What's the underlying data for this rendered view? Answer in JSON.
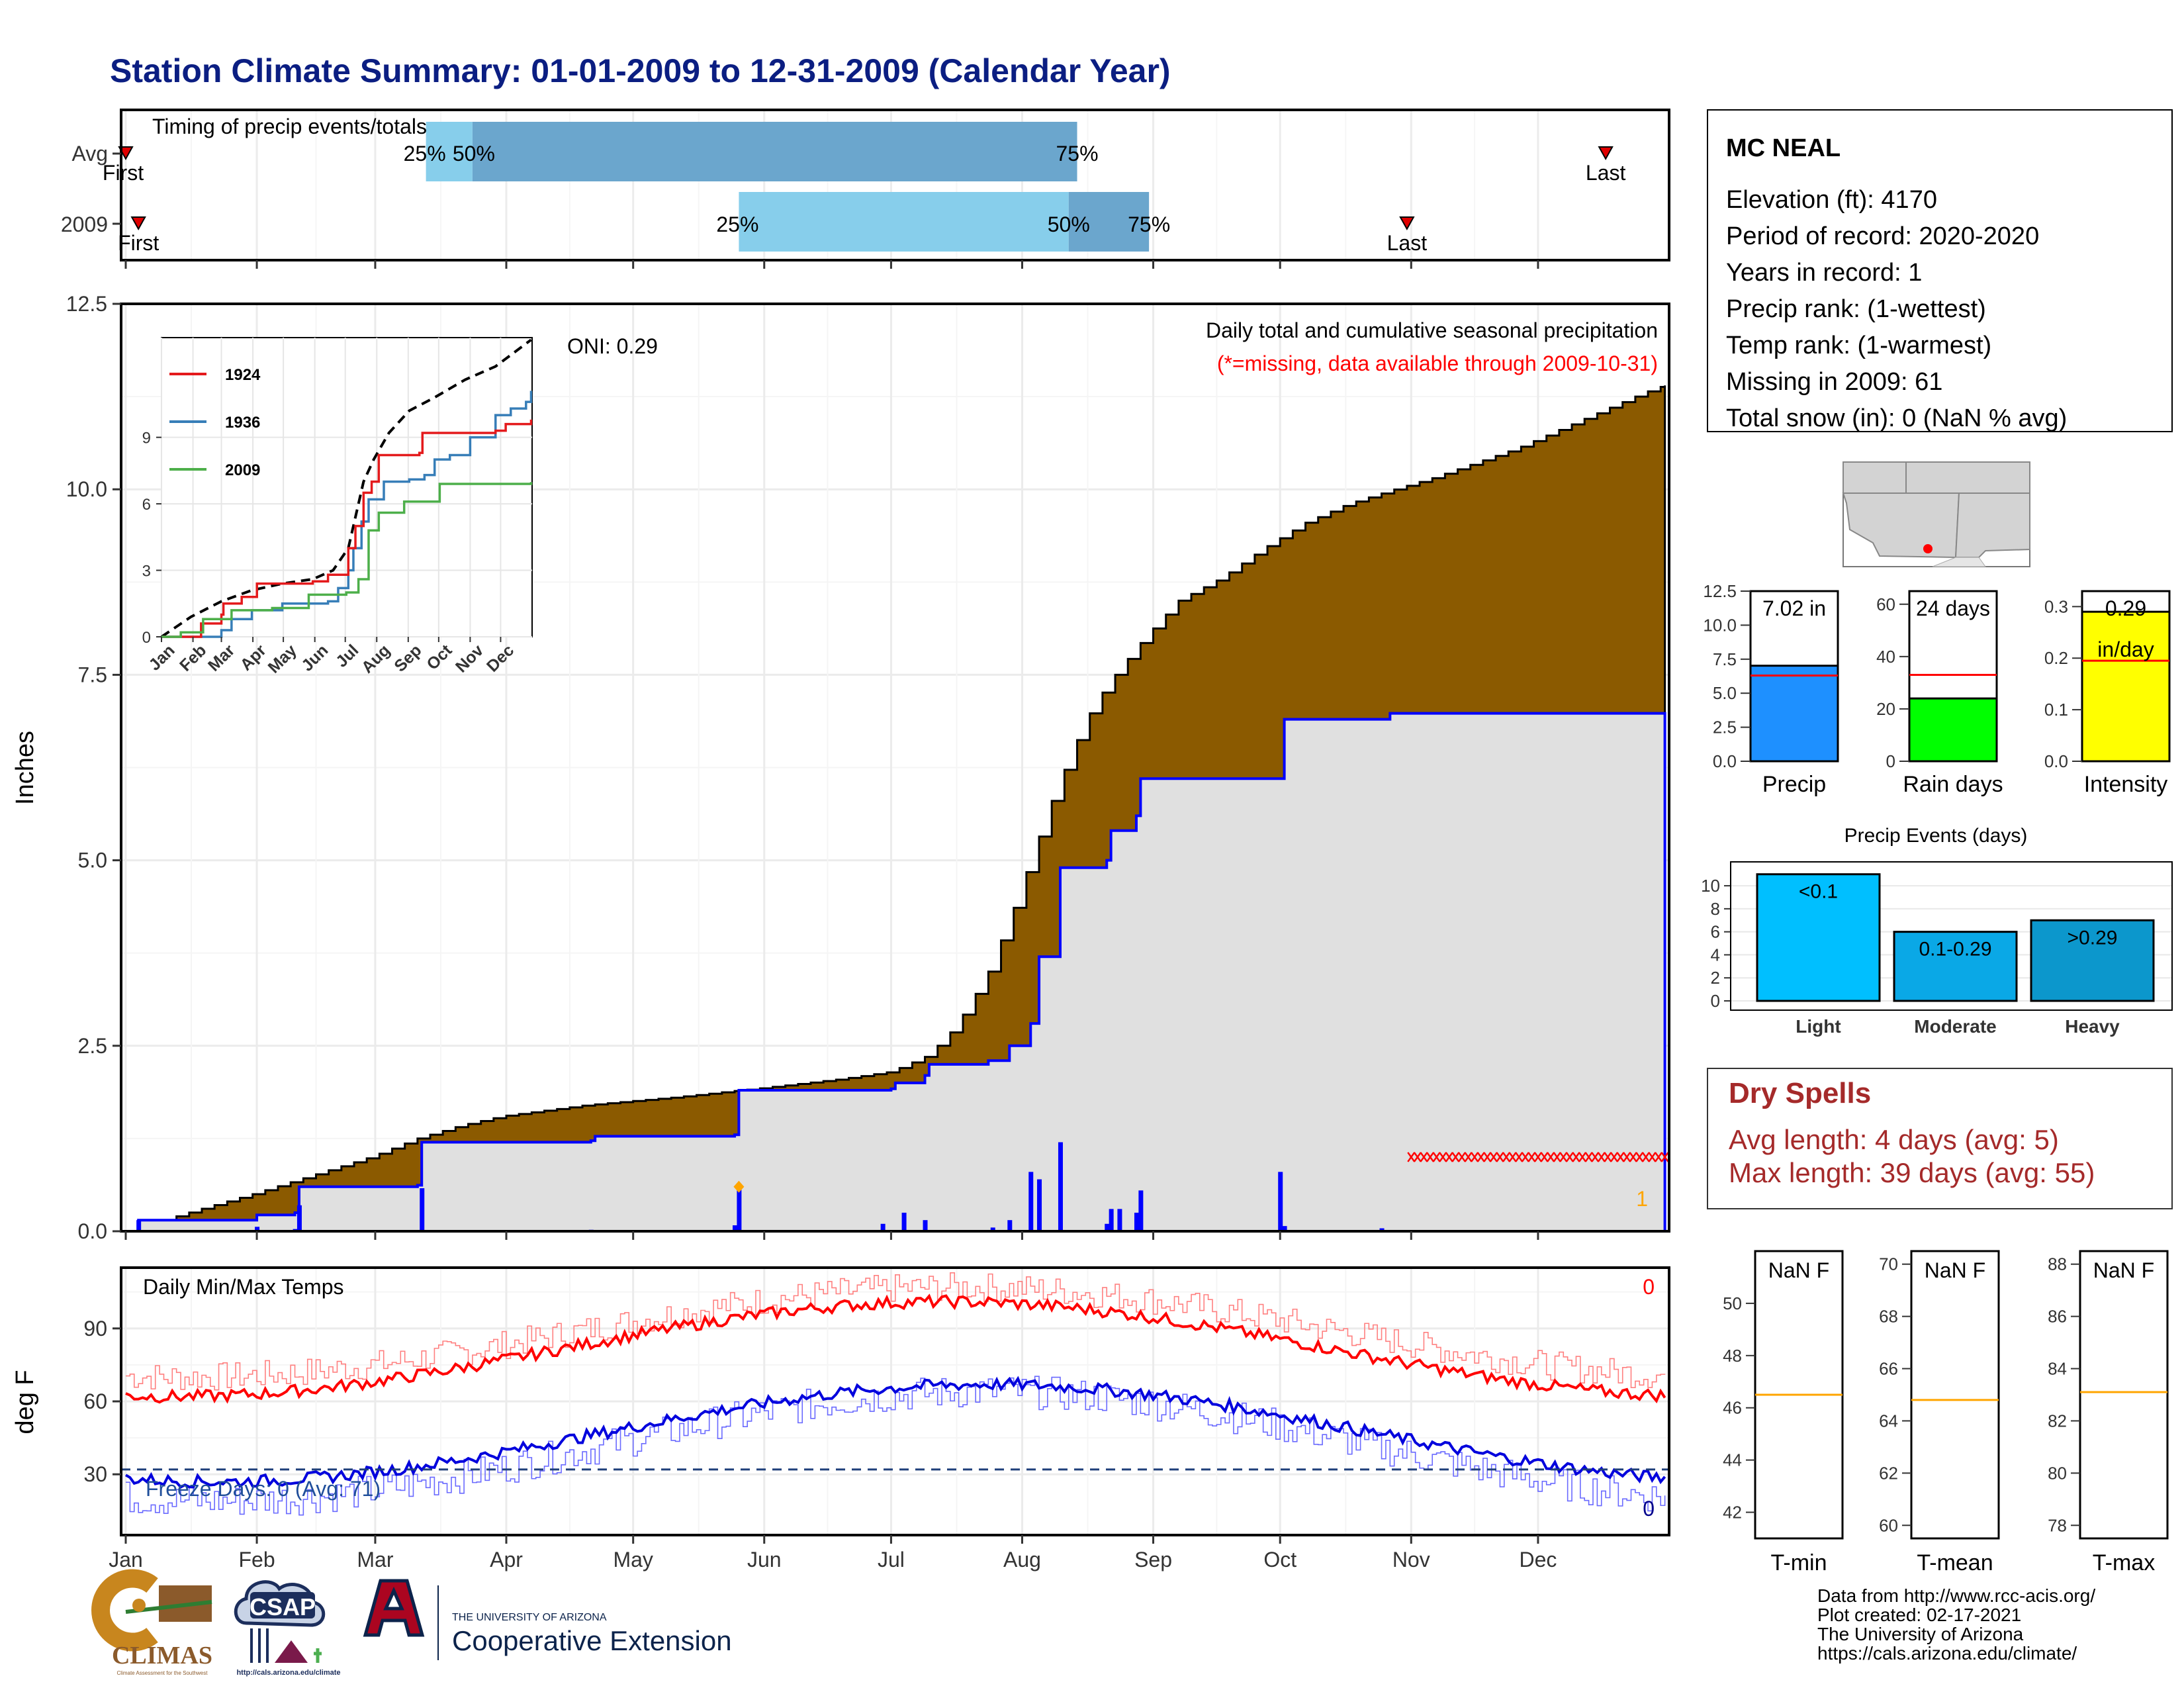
{
  "title": "Station Climate Summary: 01-01-2009 to 12-31-2009 (Calendar Year)",
  "months": [
    "Jan",
    "Feb",
    "Mar",
    "Apr",
    "May",
    "Jun",
    "Jul",
    "Aug",
    "Sep",
    "Oct",
    "Nov",
    "Dec"
  ],
  "colors": {
    "title": "#0b1e82",
    "brown": "#8b5a00",
    "gray_fill": "#e0e0e0",
    "blue": "#0000ff",
    "red": "#ff0000",
    "light_blue": "#87ceeb",
    "steel_blue": "#6ba6cd",
    "dark_red": "#a52a2a",
    "orange": "#ffa500",
    "green": "#00ff00",
    "yellow": "#ffff00",
    "precip_blue": "#1e90ff"
  },
  "timing": {
    "label": "Timing of precip events/totals",
    "rows": [
      {
        "name": "Avg",
        "first_label": "First",
        "last_label": "Last",
        "q25_label": "25%",
        "q50_label": "50%",
        "q75_label": "75%",
        "first_doy": 1,
        "q25_doy": 72,
        "q50_doy": 83,
        "q75_doy": 226,
        "last_doy": 351
      },
      {
        "name": "2009",
        "first_label": "First",
        "last_label": "Last",
        "q25_label": "25%",
        "q50_label": "50%",
        "q75_label": "75%",
        "first_doy": 4,
        "q25_doy": 146,
        "q50_doy": 224,
        "q75_doy": 243,
        "last_doy": 304
      }
    ]
  },
  "precip": {
    "ylabel": "Inches",
    "yticks": [
      "0.0",
      "2.5",
      "5.0",
      "7.5",
      "10.0",
      "12.5"
    ],
    "ylim": [
      0,
      12.5
    ],
    "oni": "ONI: 0.29",
    "caption": "Daily total and cumulative seasonal precipitation",
    "missing_note": "(*=missing, data available through 2009-10-31)",
    "count_label": "1",
    "avg_cumulative": [
      [
        1,
        0
      ],
      [
        10,
        0.15
      ],
      [
        20,
        0.32
      ],
      [
        31,
        0.5
      ],
      [
        45,
        0.75
      ],
      [
        59,
        1.0
      ],
      [
        70,
        1.25
      ],
      [
        80,
        1.42
      ],
      [
        90,
        1.55
      ],
      [
        110,
        1.7
      ],
      [
        130,
        1.8
      ],
      [
        150,
        1.92
      ],
      [
        170,
        2.05
      ],
      [
        182,
        2.15
      ],
      [
        190,
        2.35
      ],
      [
        195,
        2.6
      ],
      [
        200,
        3.0
      ],
      [
        205,
        3.5
      ],
      [
        210,
        4.2
      ],
      [
        215,
        5.0
      ],
      [
        220,
        5.8
      ],
      [
        225,
        6.5
      ],
      [
        230,
        7.1
      ],
      [
        235,
        7.5
      ],
      [
        242,
        8.0
      ],
      [
        250,
        8.5
      ],
      [
        260,
        8.8
      ],
      [
        270,
        9.2
      ],
      [
        280,
        9.55
      ],
      [
        290,
        9.8
      ],
      [
        300,
        9.98
      ],
      [
        310,
        10.15
      ],
      [
        320,
        10.35
      ],
      [
        330,
        10.55
      ],
      [
        340,
        10.8
      ],
      [
        350,
        11.05
      ],
      [
        360,
        11.3
      ],
      [
        365,
        11.4
      ]
    ],
    "cumulative_2009": [
      [
        1,
        0
      ],
      [
        4,
        0.15
      ],
      [
        31,
        0.15
      ],
      [
        32,
        0.22
      ],
      [
        41,
        0.25
      ],
      [
        42,
        0.6
      ],
      [
        70,
        0.62
      ],
      [
        71,
        1.2
      ],
      [
        111,
        1.22
      ],
      [
        112,
        1.28
      ],
      [
        145,
        1.3
      ],
      [
        146,
        1.9
      ],
      [
        182,
        1.92
      ],
      [
        183,
        2.0
      ],
      [
        190,
        2.1
      ],
      [
        191,
        2.25
      ],
      [
        205,
        2.3
      ],
      [
        210,
        2.5
      ],
      [
        215,
        2.8
      ],
      [
        217,
        3.7
      ],
      [
        222,
        4.9
      ],
      [
        233,
        5.0
      ],
      [
        234,
        5.4
      ],
      [
        240,
        5.6
      ],
      [
        241,
        6.1
      ],
      [
        273,
        6.1
      ],
      [
        275,
        6.9
      ],
      [
        300,
        6.98
      ],
      [
        365,
        6.98
      ]
    ],
    "daily_bars": [
      [
        4,
        0.15
      ],
      [
        32,
        0.06
      ],
      [
        41,
        0.03
      ],
      [
        42,
        0.35
      ],
      [
        71,
        0.58
      ],
      [
        111,
        0.02
      ],
      [
        145,
        0.08
      ],
      [
        146,
        0.6
      ],
      [
        180,
        0.1
      ],
      [
        185,
        0.25
      ],
      [
        190,
        0.15
      ],
      [
        206,
        0.05
      ],
      [
        210,
        0.15
      ],
      [
        215,
        0.8
      ],
      [
        217,
        0.7
      ],
      [
        222,
        1.2
      ],
      [
        233,
        0.1
      ],
      [
        234,
        0.3
      ],
      [
        236,
        0.3
      ],
      [
        240,
        0.25
      ],
      [
        241,
        0.55
      ],
      [
        274,
        0.8
      ],
      [
        275,
        0.07
      ],
      [
        298,
        0.04
      ]
    ],
    "missing_start_doy": 305,
    "missing_end_doy": 365,
    "missing_y": 1.0,
    "flag_doy": 146,
    "flag_y": 0.6
  },
  "inset": {
    "series": [
      {
        "name": "1924",
        "color": "#e41a1c"
      },
      {
        "name": "1936",
        "color": "#377eb8"
      },
      {
        "name": "2009",
        "color": "#4daf4a"
      }
    ],
    "yticks": [
      "0",
      "3",
      "6",
      "9"
    ],
    "ylim": [
      0,
      13.5
    ],
    "avg": [
      [
        1,
        0
      ],
      [
        30,
        0.9
      ],
      [
        60,
        1.6
      ],
      [
        90,
        2.1
      ],
      [
        120,
        2.4
      ],
      [
        150,
        2.6
      ],
      [
        170,
        3.0
      ],
      [
        185,
        4.0
      ],
      [
        195,
        6.0
      ],
      [
        200,
        7.0
      ],
      [
        210,
        8.0
      ],
      [
        225,
        9.2
      ],
      [
        245,
        10.2
      ],
      [
        270,
        10.8
      ],
      [
        300,
        11.6
      ],
      [
        330,
        12.2
      ],
      [
        365,
        13.4
      ]
    ],
    "s1924": [
      [
        1,
        0
      ],
      [
        40,
        0.6
      ],
      [
        60,
        1.0
      ],
      [
        62,
        1.5
      ],
      [
        80,
        1.8
      ],
      [
        95,
        2.4
      ],
      [
        150,
        2.5
      ],
      [
        165,
        2.8
      ],
      [
        185,
        4.0
      ],
      [
        192,
        5.0
      ],
      [
        200,
        6.5
      ],
      [
        208,
        7.0
      ],
      [
        215,
        8.2
      ],
      [
        255,
        8.3
      ],
      [
        258,
        9.2
      ],
      [
        330,
        9.3
      ],
      [
        340,
        9.6
      ],
      [
        365,
        9.8
      ]
    ],
    "s1936": [
      [
        1,
        0
      ],
      [
        60,
        0.3
      ],
      [
        70,
        0.8
      ],
      [
        90,
        1.2
      ],
      [
        120,
        1.5
      ],
      [
        165,
        1.6
      ],
      [
        175,
        2.2
      ],
      [
        185,
        3.0
      ],
      [
        190,
        4.0
      ],
      [
        198,
        5.2
      ],
      [
        205,
        6.2
      ],
      [
        220,
        7.0
      ],
      [
        245,
        7.1
      ],
      [
        260,
        7.3
      ],
      [
        270,
        8.0
      ],
      [
        285,
        8.2
      ],
      [
        305,
        9.0
      ],
      [
        330,
        10.0
      ],
      [
        345,
        10.3
      ],
      [
        360,
        10.6
      ],
      [
        365,
        11.1
      ]
    ],
    "s2009": [
      [
        1,
        0
      ],
      [
        20,
        0.2
      ],
      [
        42,
        0.8
      ],
      [
        70,
        1.2
      ],
      [
        110,
        1.3
      ],
      [
        146,
        1.9
      ],
      [
        183,
        2.0
      ],
      [
        195,
        2.6
      ],
      [
        205,
        4.8
      ],
      [
        215,
        5.6
      ],
      [
        240,
        6.1
      ],
      [
        275,
        6.9
      ],
      [
        365,
        6.98
      ]
    ]
  },
  "temps": {
    "label": "Daily Min/Max Temps",
    "ylabel": "deg F",
    "yticks": [
      "30",
      "60",
      "90"
    ],
    "ylim": [
      5,
      115
    ],
    "freeze": "Freeze Days: 0 (Avg: 71)",
    "max_missing": "0",
    "min_missing": "0",
    "freeze_line": 32
  },
  "station": {
    "name": "MC NEAL",
    "lines": [
      "Elevation (ft): 4170",
      "Period of record: 2020-2020",
      "Years in record: 1",
      "Precip rank:  (1-wettest)",
      "Temp rank:  (1-warmest)",
      "Missing in 2009: 61",
      "Total snow (in): 0 (NaN % avg)"
    ]
  },
  "mini_bars": [
    {
      "label": "Precip",
      "value_label": "7.02 in",
      "value": 7.02,
      "avg": 6.3,
      "max": 12.5,
      "yticks": [
        "0.0",
        "2.5",
        "5.0",
        "7.5",
        "10.0",
        "12.5"
      ],
      "color": "#1e90ff"
    },
    {
      "label": "Rain days",
      "value_label": "24 days",
      "value": 24,
      "avg": 33,
      "max": 65,
      "yticks": [
        "0",
        "20",
        "40",
        "60"
      ],
      "color": "#00ff00"
    },
    {
      "label": "Intensity",
      "value_label": "0.29",
      "value_label2": "in/day",
      "value": 0.29,
      "avg": 0.195,
      "max": 0.33,
      "yticks": [
        "0.0",
        "0.1",
        "0.2",
        "0.3"
      ],
      "color": "#ffff00"
    }
  ],
  "events": {
    "title": "Precip Events (days)",
    "yticks": [
      "0",
      "2",
      "4",
      "6",
      "8",
      "10"
    ],
    "ymax": 11.5,
    "bars": [
      {
        "label": "Light",
        "bar_label": "<0.1",
        "value": 11,
        "color": "#00bfff"
      },
      {
        "label": "Moderate",
        "bar_label": "0.1-0.29",
        "value": 6,
        "color": "#0aa8e6"
      },
      {
        "label": "Heavy",
        "bar_label": ">0.29",
        "value": 7,
        "color": "#0c97cc"
      }
    ]
  },
  "dry_spells": {
    "title": "Dry Spells",
    "avg_line": "Avg length: 4 days (avg: 5)",
    "max_line": "Max length: 39 days (avg: 55)"
  },
  "temp_boxes": [
    {
      "label": "T-min",
      "value": "NaN F",
      "yticks": [
        "42",
        "44",
        "46",
        "48",
        "50"
      ],
      "ymin": 41,
      "ymax": 52,
      "avg": 46.5
    },
    {
      "label": "T-mean",
      "value": "NaN F",
      "yticks": [
        "60",
        "62",
        "64",
        "66",
        "68",
        "70"
      ],
      "ymin": 59.5,
      "ymax": 70.5,
      "avg": 64.8
    },
    {
      "label": "T-max",
      "value": "NaN F",
      "yticks": [
        "78",
        "80",
        "82",
        "84",
        "86",
        "88"
      ],
      "ymin": 77.5,
      "ymax": 88.5,
      "avg": 83.1
    }
  ],
  "credits": [
    "Data from http://www.rcc-acis.org/",
    "Plot created: 02-17-2021",
    "The University of Arizona",
    "https://cals.arizona.edu/climate/"
  ],
  "logos": {
    "climas": "CLIMAS",
    "climas_sub": "Climate Assessment for the Southwest",
    "csap": "CSAP",
    "csap_url": "http://cals.arizona.edu/climate",
    "ua_small": "THE UNIVERSITY OF ARIZONA",
    "ua_big": "Cooperative Extension"
  }
}
